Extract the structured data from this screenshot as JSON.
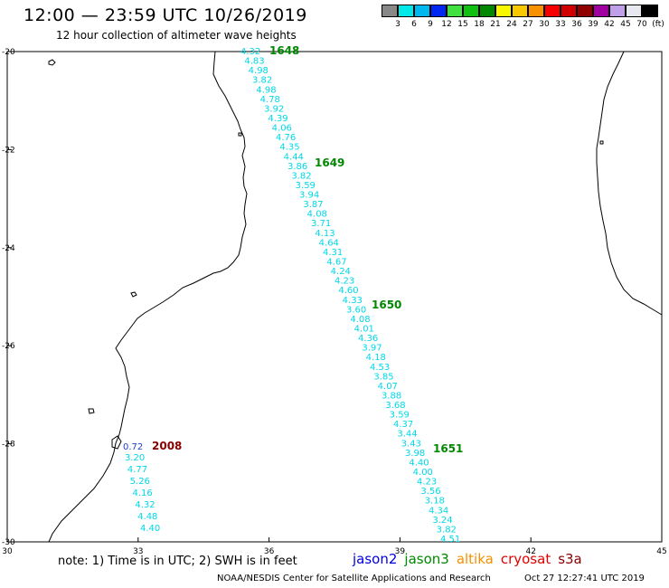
{
  "header": {
    "title": "12:00  —  23:59 UTC 10/26/2019",
    "subtitle": "12 hour collection of altimeter wave heights"
  },
  "color_scale": {
    "colors": [
      "#888888",
      "#00e8e8",
      "#00b8f0",
      "#0028f0",
      "#40e040",
      "#10c010",
      "#008800",
      "#f8f800",
      "#f8c800",
      "#f89000",
      "#f80000",
      "#d00000",
      "#900000",
      "#a000a0",
      "#c0a0e8",
      "#e8e8f0",
      "#000000"
    ],
    "labels": [
      "3",
      "6",
      "9",
      "12",
      "15",
      "18",
      "21",
      "24",
      "27",
      "30",
      "33",
      "36",
      "39",
      "42",
      "45",
      "70",
      "(ft)"
    ]
  },
  "axes": {
    "lon_labels": [
      "30",
      "33",
      "36",
      "39",
      "42",
      "45"
    ],
    "lat_labels": [
      "-20",
      "-22",
      "-24",
      "-26",
      "-28",
      "-30"
    ]
  },
  "passes": [
    {
      "label": "1648",
      "color": "#008800"
    },
    {
      "label": "1649",
      "color": "#008800"
    },
    {
      "label": "1650",
      "color": "#008800"
    },
    {
      "label": "1651",
      "color": "#008800"
    },
    {
      "label": "2008",
      "color": "#880000"
    }
  ],
  "tracks": {
    "main": [
      "4.32",
      "4.83",
      "4.98",
      "3.82",
      "4.98",
      "4.78",
      "3.92",
      "4.39",
      "4.06",
      "4.76",
      "4.35",
      "4.44",
      "3.86",
      "3.82",
      "3.59",
      "3.94",
      "3.87",
      "4.08",
      "3.71",
      "4.13",
      "4.64",
      "4.31",
      "4.67",
      "4.24",
      "4.23",
      "4.60",
      "4.33",
      "3.60",
      "4.08",
      "4.01",
      "4.36",
      "3.97",
      "4.18",
      "4.53",
      "3.85",
      "4.07",
      "3.88",
      "3.68",
      "3.59",
      "4.37",
      "3.44",
      "3.43",
      "3.98",
      "4.40",
      "4.00",
      "4.23",
      "3.56",
      "3.18",
      "4.34",
      "3.24",
      "3.82",
      "4.51"
    ],
    "cryosat_first": "0.72",
    "cryosat": [
      "3.20",
      "4.77",
      "5.26",
      "4.16",
      "4.32",
      "4.48",
      "4.40"
    ]
  },
  "footer": {
    "note": "note:  1) Time is in UTC;  2) SWH is in feet",
    "missions": [
      {
        "name": "jason2",
        "color": "#0000e0"
      },
      {
        "name": "jason3",
        "color": "#008800"
      },
      {
        "name": "altika",
        "color": "#f89000"
      },
      {
        "name": "cryosat",
        "color": "#e00000"
      },
      {
        "name": "s3a",
        "color": "#880000"
      }
    ],
    "credit": "NOAA/NESDIS Center for Satellite Applications and Research",
    "timestamp": "Oct 27 12:27:41 UTC 2019"
  }
}
